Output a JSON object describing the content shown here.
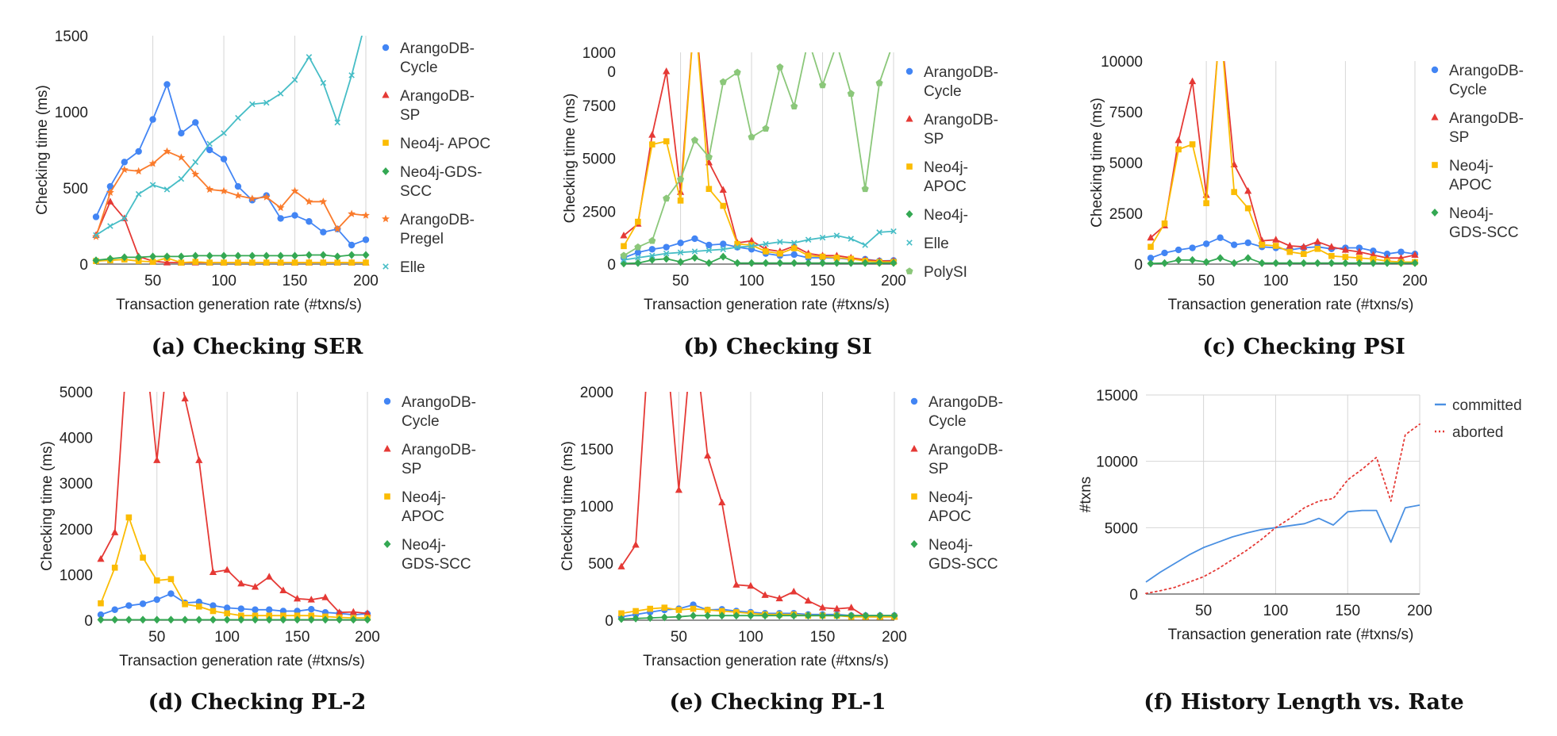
{
  "captions": {
    "a": "(a) Checking SER",
    "b": "(b) Checking SI",
    "c": "(c) Checking PSI",
    "d": "(d) Checking PL-2",
    "e": "(e) Checking PL-1",
    "f": "(f) History Length vs. Rate"
  },
  "colors": {
    "arangodb_cycle": "#4285f4",
    "arangodb_sp": "#e53935",
    "neo4j_apoc": "#fbbc04",
    "neo4j_gds_scc": "#34a853",
    "arangodb_pregel": "#fa7b2c",
    "elle": "#46bdc6",
    "polysi": "#8bc77a",
    "committed": "#4a90e2",
    "aborted": "#e53935"
  },
  "chart_data": [
    {
      "id": "a",
      "type": "line",
      "xlabel": "Transaction generation rate (#txns/s)",
      "ylabel": "Checking time (ms)",
      "xlim": [
        10,
        200
      ],
      "ylim": [
        0,
        1500
      ],
      "xticks": [
        50,
        100,
        150,
        200
      ],
      "yticks": [
        0,
        500,
        1000,
        1500
      ],
      "grid": "vertical",
      "x": [
        10,
        20,
        30,
        40,
        50,
        60,
        70,
        80,
        90,
        100,
        110,
        120,
        130,
        140,
        150,
        160,
        170,
        180,
        190,
        200
      ],
      "series": [
        {
          "name": "ArangoDB-Cycle",
          "color": "#4285f4",
          "marker": "circle",
          "values": [
            310,
            510,
            670,
            740,
            950,
            1180,
            860,
            930,
            750,
            690,
            510,
            420,
            450,
            300,
            320,
            280,
            210,
            230,
            125,
            160
          ]
        },
        {
          "name": "ArangoDB-SP",
          "color": "#e53935",
          "marker": "triangle",
          "values": [
            190,
            410,
            300,
            50,
            20,
            10,
            10,
            10,
            10,
            10,
            10,
            10,
            10,
            10,
            10,
            10,
            10,
            10,
            10,
            10
          ]
        },
        {
          "name": "Neo4j- APOC",
          "color": "#fbbc04",
          "marker": "square",
          "values": [
            20,
            25,
            30,
            20,
            15,
            40,
            10,
            15,
            10,
            10,
            10,
            10,
            10,
            10,
            10,
            10,
            10,
            10,
            10,
            10
          ]
        },
        {
          "name": "Neo4j-GDS-SCC",
          "color": "#34a853",
          "marker": "diamond",
          "values": [
            25,
            35,
            45,
            45,
            50,
            50,
            50,
            55,
            55,
            55,
            55,
            55,
            55,
            55,
            55,
            60,
            60,
            50,
            60,
            60
          ]
        },
        {
          "name": "ArangoDB-Pregel",
          "color": "#fa7b2c",
          "marker": "star",
          "values": [
            180,
            470,
            620,
            610,
            660,
            740,
            700,
            590,
            490,
            480,
            450,
            430,
            440,
            370,
            480,
            410,
            410,
            230,
            330,
            320
          ]
        },
        {
          "name": "Elle",
          "color": "#46bdc6",
          "marker": "x",
          "values": [
            190,
            250,
            300,
            460,
            520,
            490,
            560,
            670,
            790,
            860,
            960,
            1050,
            1060,
            1120,
            1210,
            1360,
            1190,
            930,
            1240,
            1600
          ]
        }
      ]
    },
    {
      "id": "b",
      "type": "line",
      "xlabel": "Transaction generation rate (#txns/s)",
      "ylabel": "Checking time (ms)",
      "xlim": [
        10,
        200
      ],
      "ylim": [
        0,
        10000
      ],
      "xticks": [
        50,
        100,
        150,
        200
      ],
      "yticks": [
        0,
        2500,
        5000,
        7500,
        10000
      ],
      "yticklabels": [
        "0",
        "2500",
        "5000",
        "7500",
        "1000\n0"
      ],
      "grid": "vertical",
      "x": [
        10,
        20,
        30,
        40,
        50,
        60,
        70,
        80,
        90,
        100,
        110,
        120,
        130,
        140,
        150,
        160,
        170,
        180,
        190,
        200
      ],
      "series": [
        {
          "name": "ArangoDB-Cycle",
          "color": "#4285f4",
          "marker": "circle",
          "values": [
            300,
            550,
            700,
            800,
            1000,
            1200,
            900,
            950,
            800,
            700,
            500,
            400,
            450,
            300,
            300,
            280,
            220,
            230,
            150,
            170
          ]
        },
        {
          "name": "ArangoDB-SP",
          "color": "#e53935",
          "marker": "triangle",
          "values": [
            1350,
            1900,
            6100,
            9100,
            3400,
            12000,
            4800,
            3500,
            1000,
            1100,
            700,
            600,
            850,
            500,
            400,
            400,
            300,
            200,
            150,
            150
          ]
        },
        {
          "name": "Neo4j- APOC",
          "color": "#fbbc04",
          "marker": "square",
          "values": [
            850,
            2000,
            5650,
            5800,
            3000,
            12000,
            3550,
            2750,
            950,
            900,
            600,
            500,
            750,
            400,
            350,
            300,
            250,
            150,
            100,
            100
          ]
        },
        {
          "name": "Neo4j-",
          "color": "#34a853",
          "marker": "diamond",
          "values": [
            30,
            50,
            200,
            250,
            100,
            300,
            50,
            350,
            50,
            50,
            50,
            50,
            50,
            50,
            50,
            50,
            50,
            50,
            50,
            50
          ]
        },
        {
          "name": "Elle",
          "color": "#46bdc6",
          "marker": "x",
          "values": [
            200,
            300,
            400,
            500,
            550,
            600,
            650,
            700,
            800,
            850,
            950,
            1050,
            1000,
            1150,
            1250,
            1350,
            1200,
            900,
            1500,
            1550
          ]
        },
        {
          "name": "PolySI",
          "color": "#8bc77a",
          "marker": "pentagon",
          "values": [
            400,
            800,
            1100,
            3100,
            4000,
            5850,
            5050,
            8600,
            9050,
            6000,
            6400,
            9300,
            7450,
            10600,
            8450,
            10400,
            8050,
            3550,
            8550,
            10500
          ]
        }
      ]
    },
    {
      "id": "c",
      "type": "line",
      "xlabel": "Transaction generation rate (#txns/s)",
      "ylabel": "Checking time (ms)",
      "xlim": [
        10,
        200
      ],
      "ylim": [
        0,
        10000
      ],
      "xticks": [
        50,
        100,
        150,
        200
      ],
      "yticks": [
        0,
        2500,
        5000,
        7500,
        10000
      ],
      "grid": "vertical",
      "x": [
        10,
        20,
        30,
        40,
        50,
        60,
        70,
        80,
        90,
        100,
        110,
        120,
        130,
        140,
        150,
        160,
        170,
        180,
        190,
        200
      ],
      "series": [
        {
          "name": "ArangoDB-Cycle",
          "color": "#4285f4",
          "marker": "circle",
          "values": [
            300,
            550,
            700,
            800,
            1000,
            1300,
            950,
            1050,
            850,
            800,
            700,
            800,
            850,
            750,
            800,
            800,
            650,
            500,
            600,
            500
          ]
        },
        {
          "name": "ArangoDB-SP",
          "color": "#e53935",
          "marker": "triangle",
          "values": [
            1300,
            1900,
            6100,
            9000,
            3400,
            12000,
            4900,
            3600,
            1150,
            1200,
            900,
            850,
            1100,
            850,
            700,
            600,
            450,
            300,
            300,
            450
          ]
        },
        {
          "name": "Neo4j- APOC",
          "color": "#fbbc04",
          "marker": "square",
          "values": [
            850,
            2000,
            5650,
            5900,
            3000,
            12000,
            3550,
            2750,
            950,
            900,
            600,
            500,
            750,
            400,
            350,
            300,
            250,
            150,
            100,
            100
          ]
        },
        {
          "name": "Neo4j-GDS-SCC",
          "color": "#34a853",
          "marker": "diamond",
          "values": [
            30,
            50,
            200,
            200,
            100,
            300,
            50,
            300,
            50,
            50,
            50,
            50,
            50,
            50,
            50,
            50,
            50,
            50,
            50,
            50
          ]
        }
      ]
    },
    {
      "id": "d",
      "type": "line",
      "xlabel": "Transaction generation rate (#txns/s)",
      "ylabel": "Checking time (ms)",
      "xlim": [
        10,
        200
      ],
      "ylim": [
        0,
        5000
      ],
      "xticks": [
        50,
        100,
        150,
        200
      ],
      "yticks": [
        0,
        1000,
        2000,
        3000,
        4000,
        5000
      ],
      "grid": "vertical",
      "x": [
        10,
        20,
        30,
        40,
        50,
        60,
        70,
        80,
        90,
        100,
        110,
        120,
        130,
        140,
        150,
        160,
        170,
        180,
        190,
        200
      ],
      "series": [
        {
          "name": "ArangoDB-Cycle",
          "color": "#4285f4",
          "marker": "circle",
          "values": [
            120,
            230,
            320,
            360,
            450,
            580,
            380,
            400,
            320,
            270,
            250,
            230,
            230,
            200,
            200,
            240,
            170,
            150,
            120,
            140
          ]
        },
        {
          "name": "ArangoDB-SP",
          "color": "#e53935",
          "marker": "triangle",
          "values": [
            1340,
            1920,
            6500,
            6500,
            3500,
            6500,
            4850,
            3500,
            1050,
            1100,
            800,
            730,
            950,
            650,
            470,
            450,
            500,
            170,
            180,
            150
          ]
        },
        {
          "name": "Neo4j- APOC",
          "color": "#fbbc04",
          "marker": "square",
          "values": [
            370,
            1150,
            2250,
            1370,
            870,
            900,
            350,
            300,
            200,
            150,
            100,
            100,
            100,
            100,
            100,
            100,
            80,
            60,
            50,
            50
          ]
        },
        {
          "name": "Neo4j-GDS-SCC",
          "color": "#34a853",
          "marker": "diamond",
          "values": [
            10,
            10,
            10,
            10,
            10,
            10,
            10,
            10,
            10,
            10,
            10,
            10,
            10,
            10,
            10,
            10,
            10,
            10,
            10,
            10
          ]
        }
      ]
    },
    {
      "id": "e",
      "type": "line",
      "xlabel": "Transaction generation rate (#txns/s)",
      "ylabel": "Checking time (ms)",
      "xlim": [
        10,
        200
      ],
      "ylim": [
        0,
        2000
      ],
      "xticks": [
        50,
        100,
        150,
        200
      ],
      "yticks": [
        0,
        500,
        1000,
        1500,
        2000
      ],
      "grid": "vertical",
      "x": [
        10,
        20,
        30,
        40,
        50,
        60,
        70,
        80,
        90,
        100,
        110,
        120,
        130,
        140,
        150,
        160,
        170,
        180,
        190,
        200
      ],
      "series": [
        {
          "name": "ArangoDB-Cycle",
          "color": "#4285f4",
          "marker": "circle",
          "values": [
            30,
            50,
            70,
            90,
            100,
            135,
            90,
            95,
            80,
            70,
            60,
            60,
            60,
            50,
            50,
            50,
            40,
            40,
            40,
            40
          ]
        },
        {
          "name": "ArangoDB-SP",
          "color": "#e53935",
          "marker": "triangle",
          "values": [
            470,
            660,
            2600,
            2600,
            1140,
            2600,
            1440,
            1030,
            310,
            300,
            220,
            190,
            250,
            170,
            110,
            100,
            110,
            30,
            30,
            30
          ]
        },
        {
          "name": "Neo4j- APOC",
          "color": "#fbbc04",
          "marker": "square",
          "values": [
            60,
            80,
            100,
            110,
            90,
            100,
            90,
            80,
            70,
            60,
            50,
            50,
            50,
            40,
            40,
            40,
            30,
            30,
            30,
            30
          ]
        },
        {
          "name": "Neo4j-GDS-SCC",
          "color": "#34a853",
          "marker": "diamond",
          "values": [
            10,
            15,
            20,
            25,
            30,
            40,
            40,
            40,
            40,
            40,
            40,
            40,
            40,
            40,
            40,
            40,
            40,
            40,
            40,
            40
          ]
        }
      ]
    },
    {
      "id": "f",
      "type": "line",
      "xlabel": "Transaction generation rate (#txns/s)",
      "ylabel": "#txns",
      "xlim": [
        10,
        200
      ],
      "ylim": [
        0,
        15000
      ],
      "xticks": [
        50,
        100,
        150,
        200
      ],
      "yticks": [
        0,
        5000,
        10000,
        15000
      ],
      "grid": "horizontal+vertical",
      "x": [
        10,
        20,
        30,
        40,
        50,
        60,
        70,
        80,
        90,
        100,
        110,
        120,
        130,
        140,
        150,
        160,
        170,
        180,
        190,
        200
      ],
      "series": [
        {
          "name": "committed",
          "color": "#4a90e2",
          "style": "solid",
          "values": [
            900,
            1650,
            2300,
            2950,
            3500,
            3900,
            4300,
            4600,
            4850,
            5000,
            5150,
            5300,
            5700,
            5200,
            6200,
            6300,
            6300,
            3900,
            6500,
            6700
          ]
        },
        {
          "name": "aborted",
          "color": "#e53935",
          "style": "dotted",
          "values": [
            50,
            250,
            500,
            900,
            1300,
            1900,
            2600,
            3300,
            4100,
            5000,
            5700,
            6500,
            7000,
            7200,
            8600,
            9400,
            10300,
            7000,
            12000,
            12800
          ]
        }
      ]
    }
  ]
}
